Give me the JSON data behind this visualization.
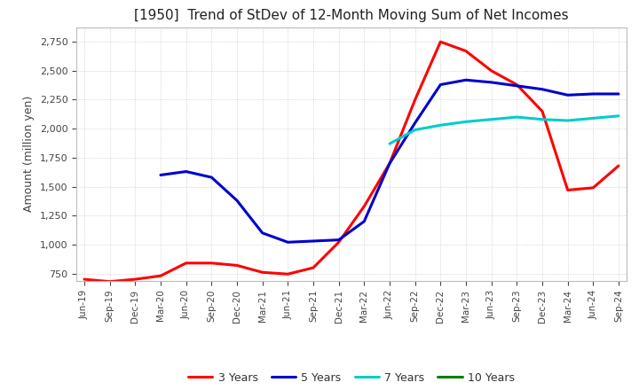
{
  "title": "[1950]  Trend of StDev of 12-Month Moving Sum of Net Incomes",
  "ylabel": "Amount (million yen)",
  "ylim": [
    687,
    2875
  ],
  "yticks": [
    750,
    1000,
    1250,
    1500,
    1750,
    2000,
    2250,
    2500,
    2750
  ],
  "background_color": "#ffffff",
  "plot_bg_color": "#ffffff",
  "grid_color": "#aaaaaa",
  "series": {
    "3 Years": {
      "color": "#ff0000",
      "data": [
        [
          "Jun-19",
          700
        ],
        [
          "Sep-19",
          680
        ],
        [
          "Dec-19",
          700
        ],
        [
          "Mar-20",
          730
        ],
        [
          "Jun-20",
          840
        ],
        [
          "Sep-20",
          840
        ],
        [
          "Dec-20",
          820
        ],
        [
          "Mar-21",
          760
        ],
        [
          "Jun-21",
          745
        ],
        [
          "Sep-21",
          800
        ],
        [
          "Dec-21",
          1020
        ],
        [
          "Mar-22",
          1330
        ],
        [
          "Jun-22",
          1700
        ],
        [
          "Sep-22",
          2250
        ],
        [
          "Dec-22",
          2750
        ],
        [
          "Mar-23",
          2670
        ],
        [
          "Jun-23",
          2500
        ],
        [
          "Sep-23",
          2380
        ],
        [
          "Dec-23",
          2150
        ],
        [
          "Mar-24",
          1470
        ],
        [
          "Jun-24",
          1490
        ],
        [
          "Sep-24",
          1680
        ]
      ]
    },
    "5 Years": {
      "color": "#0000cc",
      "data": [
        [
          "Jun-19",
          null
        ],
        [
          "Sep-19",
          null
        ],
        [
          "Dec-19",
          null
        ],
        [
          "Mar-20",
          1600
        ],
        [
          "Jun-20",
          1630
        ],
        [
          "Sep-20",
          1580
        ],
        [
          "Dec-20",
          1380
        ],
        [
          "Mar-21",
          1100
        ],
        [
          "Jun-21",
          1020
        ],
        [
          "Sep-21",
          1030
        ],
        [
          "Dec-21",
          1040
        ],
        [
          "Mar-22",
          1200
        ],
        [
          "Jun-22",
          1700
        ],
        [
          "Sep-22",
          2050
        ],
        [
          "Dec-22",
          2380
        ],
        [
          "Mar-23",
          2420
        ],
        [
          "Jun-23",
          2400
        ],
        [
          "Sep-23",
          2370
        ],
        [
          "Dec-23",
          2340
        ],
        [
          "Mar-24",
          2290
        ],
        [
          "Jun-24",
          2300
        ],
        [
          "Sep-24",
          2300
        ]
      ]
    },
    "7 Years": {
      "color": "#00cccc",
      "data": [
        [
          "Jun-19",
          null
        ],
        [
          "Sep-19",
          null
        ],
        [
          "Dec-19",
          null
        ],
        [
          "Mar-20",
          null
        ],
        [
          "Jun-20",
          null
        ],
        [
          "Sep-20",
          null
        ],
        [
          "Dec-20",
          null
        ],
        [
          "Mar-21",
          null
        ],
        [
          "Jun-21",
          null
        ],
        [
          "Sep-21",
          null
        ],
        [
          "Dec-21",
          null
        ],
        [
          "Mar-22",
          null
        ],
        [
          "Jun-22",
          1870
        ],
        [
          "Sep-22",
          1990
        ],
        [
          "Dec-22",
          2030
        ],
        [
          "Mar-23",
          2060
        ],
        [
          "Jun-23",
          2080
        ],
        [
          "Sep-23",
          2100
        ],
        [
          "Dec-23",
          2080
        ],
        [
          "Mar-24",
          2070
        ],
        [
          "Jun-24",
          2090
        ],
        [
          "Sep-24",
          2110
        ]
      ]
    },
    "10 Years": {
      "color": "#008000",
      "data": [
        [
          "Jun-19",
          null
        ],
        [
          "Sep-19",
          null
        ],
        [
          "Dec-19",
          null
        ],
        [
          "Mar-20",
          null
        ],
        [
          "Jun-20",
          null
        ],
        [
          "Sep-20",
          null
        ],
        [
          "Dec-20",
          null
        ],
        [
          "Mar-21",
          null
        ],
        [
          "Jun-21",
          null
        ],
        [
          "Sep-21",
          null
        ],
        [
          "Dec-21",
          null
        ],
        [
          "Mar-22",
          null
        ],
        [
          "Jun-22",
          null
        ],
        [
          "Sep-22",
          null
        ],
        [
          "Dec-22",
          null
        ],
        [
          "Mar-23",
          null
        ],
        [
          "Jun-23",
          null
        ],
        [
          "Sep-23",
          null
        ],
        [
          "Dec-23",
          null
        ],
        [
          "Mar-24",
          null
        ],
        [
          "Jun-24",
          null
        ],
        [
          "Sep-24",
          null
        ]
      ]
    }
  },
  "xtick_labels": [
    "Jun-19",
    "Sep-19",
    "Dec-19",
    "Mar-20",
    "Jun-20",
    "Sep-20",
    "Dec-20",
    "Mar-21",
    "Jun-21",
    "Sep-21",
    "Dec-21",
    "Mar-22",
    "Jun-22",
    "Sep-22",
    "Dec-22",
    "Mar-23",
    "Jun-23",
    "Sep-23",
    "Dec-23",
    "Mar-24",
    "Jun-24",
    "Sep-24"
  ]
}
